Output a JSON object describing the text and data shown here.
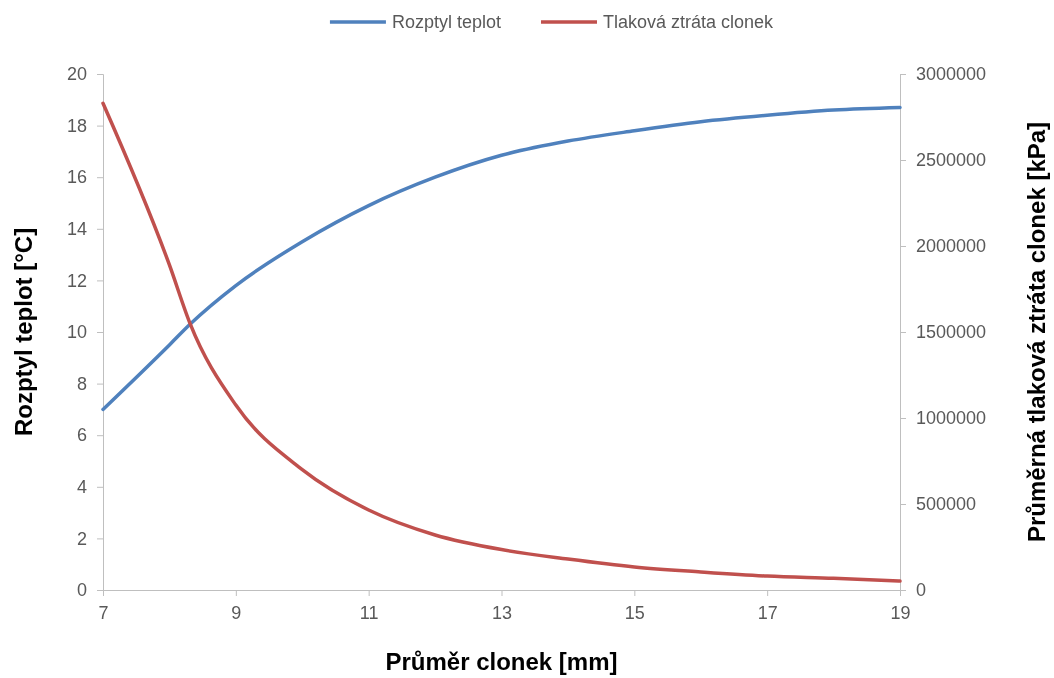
{
  "chart_data": {
    "type": "line",
    "xlabel": "Průměr clonek [mm]",
    "ylabel": "Rozptyl teplot [°C]",
    "y2label": "Průměrná tlaková ztráta clonek [kPa]",
    "x": [
      7,
      8,
      8.31,
      9,
      10,
      11,
      12,
      13,
      14,
      15,
      16,
      17,
      18,
      19
    ],
    "xlim": [
      7,
      19
    ],
    "xticks": [
      7,
      9,
      11,
      13,
      15,
      17,
      19
    ],
    "ylim": [
      0,
      20
    ],
    "yticks": [
      0,
      2,
      4,
      6,
      8,
      10,
      12,
      14,
      16,
      18,
      20
    ],
    "y2lim": [
      0,
      3000000
    ],
    "y2ticks": [
      0,
      500000,
      1000000,
      1500000,
      2000000,
      2500000,
      3000000
    ],
    "legend": "top",
    "grid": false,
    "marker": "none",
    "line_style": "solid",
    "series": [
      {
        "name": "Rozptyl teplot",
        "color": "#4f81bd",
        "values": [
          7.0,
          9.5,
          10.3,
          11.8,
          13.5,
          14.9,
          16.0,
          16.85,
          17.4,
          17.8,
          18.15,
          18.4,
          18.6,
          18.7
        ]
      },
      {
        "name": "Tlaková ztráta clonek",
        "color": "#c0504d",
        "axis": "y2",
        "values": [
          2830000,
          1890000,
          1550000,
          1075000,
          700000,
          465000,
          320000,
          235000,
          180000,
          134000,
          105000,
          81000,
          68000,
          52000
        ]
      }
    ]
  }
}
